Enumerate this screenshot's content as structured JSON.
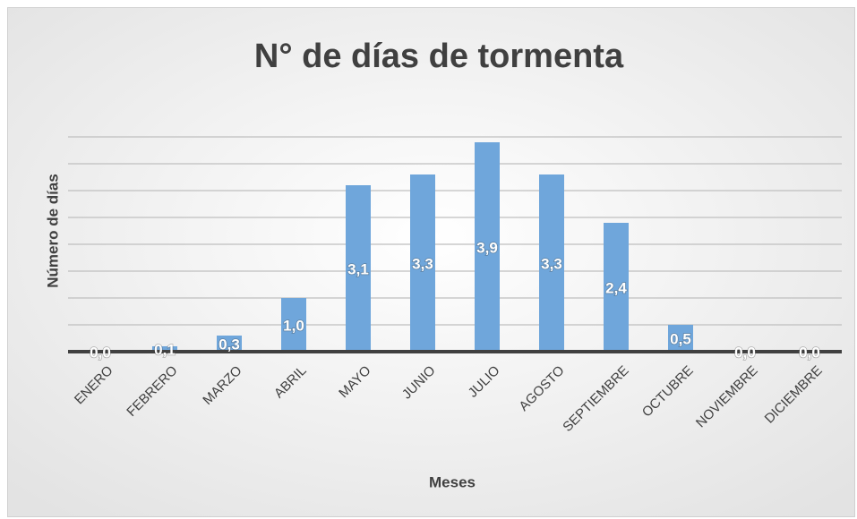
{
  "chart_data": {
    "type": "bar",
    "title": "N° de días de tormenta",
    "x_label": "Meses",
    "y_label": "Número de días",
    "categories": [
      "ENERO",
      "FEBRERO",
      "MARZO",
      "ABRIL",
      "MAYO",
      "JUNIO",
      "JULIO",
      "AGOSTO",
      "SEPTIEMBRE",
      "OCTUBRE",
      "NOVIEMBRE",
      "DICIEMBRE"
    ],
    "values": [
      0,
      0.1,
      0.3,
      1,
      3.1,
      3.3,
      3.9,
      3.3,
      2.4,
      0.5,
      0,
      0
    ],
    "value_labels": [
      "0,0",
      "0,1",
      "0,3",
      "1,0",
      "3,1",
      "3,3",
      "3,9",
      "3,3",
      "2,4",
      "0,5",
      "0,0",
      "0,0"
    ],
    "color": "#6fa6db",
    "ylim": [
      0,
      4
    ],
    "yticks": [
      0,
      0.5,
      1,
      1.5,
      2,
      2.5,
      3,
      3.5,
      4
    ],
    "grid": true
  }
}
